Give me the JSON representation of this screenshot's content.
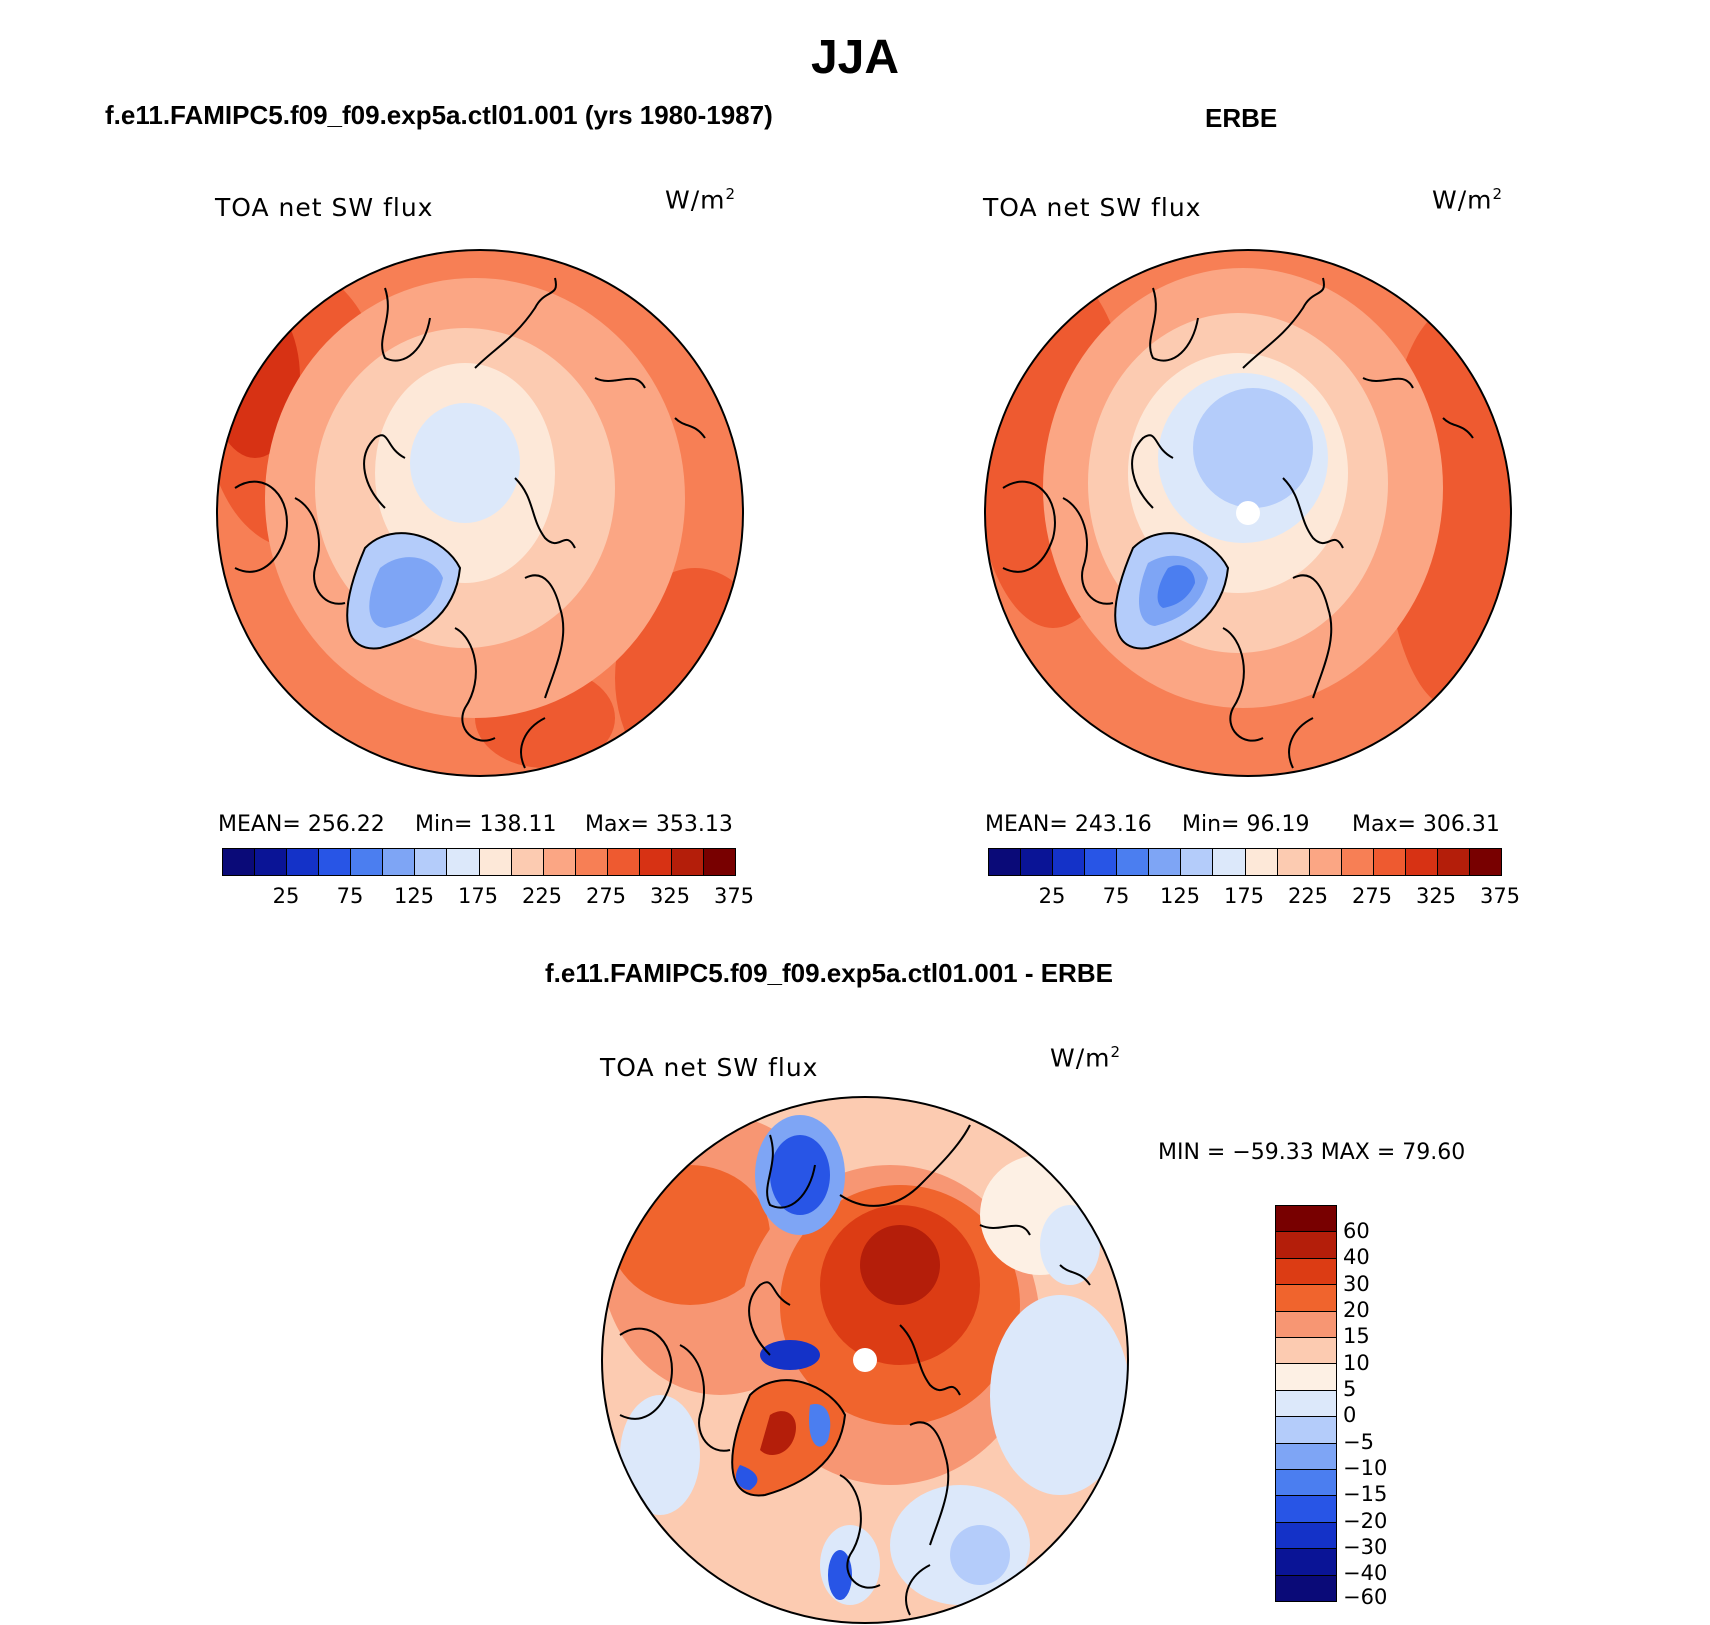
{
  "figure": {
    "season_title": "JJA",
    "panels": [
      {
        "title": "f.e11.FAMIPC5.f09_f09.exp5a.ctl01.001 (yrs 1980-1987)",
        "variable": "TOA net SW flux",
        "units": "W/m",
        "units_sup": "2",
        "mean_text": "MEAN= 256.22",
        "min_text": "Min= 138.11",
        "max_text": "Max= 353.13"
      },
      {
        "title": "ERBE",
        "variable": "TOA net SW flux",
        "units": "W/m",
        "units_sup": "2",
        "mean_text": "MEAN= 243.16",
        "min_text": "Min=  96.19",
        "max_text": "Max= 306.31"
      },
      {
        "title": "f.e11.FAMIPC5.f09_f09.exp5a.ctl01.001 - ERBE",
        "variable": "TOA net SW flux",
        "units": "W/m",
        "units_sup": "2",
        "minmax_text": "MIN = −59.33 MAX =  79.60"
      }
    ]
  },
  "colorbars": {
    "absolute": {
      "colors": [
        "#0a0a78",
        "#0a1496",
        "#1432c8",
        "#2855e6",
        "#4b7ef0",
        "#7ea5f5",
        "#b4ccfa",
        "#dce8fa",
        "#fde8d8",
        "#fccbb1",
        "#fba684",
        "#f77f55",
        "#ee5a30",
        "#d73214",
        "#b41e0a",
        "#780000"
      ],
      "labels": [
        "25",
        "75",
        "125",
        "175",
        "225",
        "275",
        "325",
        "375"
      ]
    },
    "difference": {
      "colors": [
        "#780000",
        "#b41e0a",
        "#dc3c14",
        "#f0642d",
        "#f79673",
        "#fccbb1",
        "#fdf0e4",
        "#dce8fa",
        "#b4ccfa",
        "#7ea5f5",
        "#4b7ef0",
        "#2855e6",
        "#1432c8",
        "#0a1496",
        "#0a0a78"
      ],
      "labels": [
        "60",
        "40",
        "30",
        "20",
        "15",
        "10",
        "5",
        "0",
        "−5",
        "−10",
        "−15",
        "−20",
        "−30",
        "−40",
        "−60"
      ]
    }
  }
}
